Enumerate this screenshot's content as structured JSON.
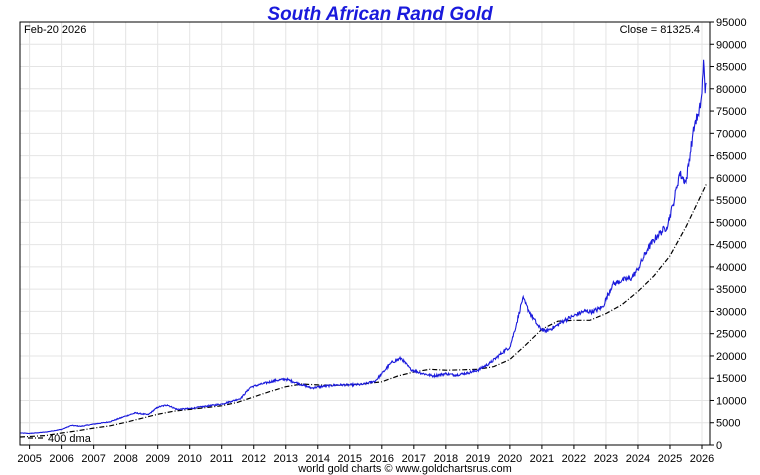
{
  "chart_data": {
    "type": "line",
    "title": "South African Rand Gold",
    "date_label": "Feb-20  2026",
    "close_label": "Close = 81325.4",
    "footer": "world gold charts © www.goldchartsrus.com",
    "xlabel": "",
    "ylabel": "",
    "xlim": [
      2004.7,
      2026.25
    ],
    "ylim": [
      0,
      95000
    ],
    "y_ticks": [
      0,
      5000,
      10000,
      15000,
      20000,
      25000,
      30000,
      35000,
      40000,
      45000,
      50000,
      55000,
      60000,
      65000,
      70000,
      75000,
      80000,
      85000,
      90000,
      95000
    ],
    "y_tick_labels": [
      "0",
      "5000",
      "10000",
      "15000",
      "20000",
      "25000",
      "30000",
      "35000",
      "40000",
      "45000",
      "50000",
      "55000",
      "60000",
      "65000",
      "70000",
      "75000",
      "80000",
      "85000",
      "90000",
      "95000"
    ],
    "x_ticks": [
      2005,
      2006,
      2007,
      2008,
      2009,
      2010,
      2011,
      2012,
      2013,
      2014,
      2015,
      2016,
      2017,
      2018,
      2019,
      2020,
      2021,
      2022,
      2023,
      2024,
      2025,
      2026
    ],
    "x_tick_labels": [
      "2005",
      "2006",
      "2007",
      "2008",
      "2009",
      "2010",
      "2011",
      "2012",
      "2013",
      "2014",
      "2015",
      "2016",
      "2017",
      "2018",
      "2019",
      "2020",
      "2021",
      "2022",
      "2023",
      "2024",
      "2025",
      "2026"
    ],
    "grid": true,
    "colors": {
      "price": "#1a1adc",
      "dma": "#000000",
      "title": "#1a1adc"
    },
    "series": [
      {
        "name": "South African Rand Gold",
        "style": "solid",
        "x": [
          2004.7,
          2005.0,
          2005.5,
          2006.0,
          2006.3,
          2006.6,
          2007.0,
          2007.5,
          2008.0,
          2008.3,
          2008.7,
          2009.0,
          2009.3,
          2009.6,
          2010.0,
          2010.5,
          2011.0,
          2011.3,
          2011.6,
          2011.9,
          2012.3,
          2012.7,
          2013.0,
          2013.4,
          2013.8,
          2014.2,
          2014.6,
          2015.0,
          2015.4,
          2015.8,
          2016.0,
          2016.3,
          2016.6,
          2016.9,
          2017.2,
          2017.6,
          2018.0,
          2018.3,
          2018.7,
          2019.0,
          2019.4,
          2019.8,
          2020.0,
          2020.2,
          2020.4,
          2020.6,
          2020.9,
          2021.1,
          2021.4,
          2021.7,
          2022.0,
          2022.3,
          2022.6,
          2022.9,
          2023.2,
          2023.5,
          2023.8,
          2024.0,
          2024.3,
          2024.6,
          2024.9,
          2025.1,
          2025.3,
          2025.5,
          2025.7,
          2025.8,
          2025.9,
          2026.0,
          2026.05,
          2026.1,
          2026.13
        ],
        "values": [
          2700,
          2600,
          2900,
          3500,
          4400,
          4200,
          4700,
          5200,
          6500,
          7200,
          6800,
          8500,
          9000,
          8000,
          8200,
          8700,
          9200,
          9800,
          10500,
          13000,
          13800,
          14500,
          14800,
          13800,
          12800,
          13200,
          13500,
          13500,
          13600,
          14400,
          16000,
          18500,
          19500,
          17000,
          16200,
          15500,
          16000,
          15700,
          16200,
          16800,
          18500,
          21000,
          22000,
          27000,
          33000,
          30000,
          26500,
          25500,
          26500,
          28000,
          29000,
          30000,
          30000,
          31000,
          36000,
          37000,
          37500,
          39500,
          44000,
          47000,
          49000,
          54000,
          61000,
          59000,
          69000,
          73000,
          74000,
          79000,
          86500,
          79000,
          81325.4
        ]
      },
      {
        "name": "400 dma",
        "style": "dash-dot",
        "x": [
          2004.7,
          2005.5,
          2006.0,
          2006.5,
          2007.0,
          2007.5,
          2008.0,
          2008.5,
          2009.0,
          2009.5,
          2010.0,
          2010.5,
          2011.0,
          2011.5,
          2012.0,
          2012.5,
          2013.0,
          2013.5,
          2014.0,
          2014.5,
          2015.0,
          2015.5,
          2016.0,
          2016.5,
          2017.0,
          2017.5,
          2018.0,
          2018.5,
          2019.0,
          2019.5,
          2020.0,
          2020.5,
          2021.0,
          2021.5,
          2022.0,
          2022.5,
          2023.0,
          2023.5,
          2024.0,
          2024.5,
          2025.0,
          2025.5,
          2026.0,
          2026.13
        ],
        "values": [
          1800,
          2100,
          2700,
          3200,
          3800,
          4300,
          5100,
          6000,
          6900,
          7600,
          8000,
          8400,
          8800,
          9600,
          10800,
          12000,
          13100,
          13700,
          13500,
          13400,
          13500,
          13800,
          14200,
          15500,
          16400,
          17000,
          16800,
          16900,
          17000,
          17600,
          19200,
          22500,
          26000,
          27800,
          28000,
          28000,
          29500,
          31500,
          34500,
          38000,
          42500,
          49000,
          56500,
          58500
        ]
      }
    ]
  }
}
